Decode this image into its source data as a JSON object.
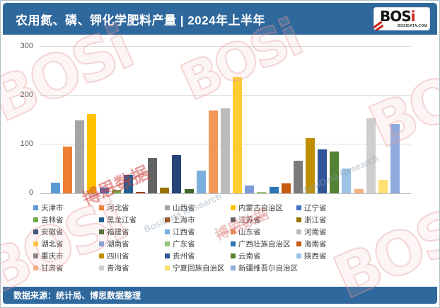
{
  "header": {
    "title": "农用氮、磷、钾化学肥料产量 | 2024年上半年",
    "logo": {
      "brand": "BOS",
      "brand_accent": "i",
      "domain": "BOSIDATA.COM"
    }
  },
  "footer": {
    "source_label": "数据来源：统计局、博思数据整理"
  },
  "watermarks": {
    "brand_en": "BOSi",
    "brand_cn": "博思数据",
    "research": "BosiData Research"
  },
  "chart_data": {
    "type": "bar",
    "title": "农用氮、磷、钾化学肥料产量 | 2024年上半年",
    "xlabel": "",
    "ylabel": "",
    "ylim": [
      0,
      300
    ],
    "yticks": [
      0,
      100,
      200,
      300
    ],
    "grid": true,
    "legend_position": "bottom",
    "legend_columns": 5,
    "categories": [
      "天津市",
      "河北省",
      "山西省",
      "内蒙古自治区",
      "辽宁省",
      "吉林省",
      "黑龙江省",
      "上海市",
      "江苏省",
      "浙江省",
      "安徽省",
      "福建省",
      "江西省",
      "山东省",
      "河南省",
      "湖北省",
      "湖南省",
      "广东省",
      "广西壮族自治区",
      "海南省",
      "重庆市",
      "四川省",
      "贵州省",
      "云南省",
      "陕西省",
      "甘肃省",
      "青海省",
      "宁夏回族自治区",
      "新疆维吾尔自治区"
    ],
    "values": [
      22,
      95,
      150,
      163,
      11,
      7,
      37,
      3,
      72,
      12,
      78,
      8,
      46,
      170,
      174,
      237,
      16,
      3,
      13,
      21,
      66,
      113,
      90,
      85,
      51,
      8,
      154,
      28,
      142
    ],
    "colors": [
      "#5B9BD5",
      "#ED7D31",
      "#A5A5A5",
      "#FFC000",
      "#4472C4",
      "#70AD47",
      "#255E91",
      "#9E480E",
      "#636363",
      "#997300",
      "#264478",
      "#43682B",
      "#7CAFDD",
      "#F1975A",
      "#BCBCBC",
      "#FFCD33",
      "#7D9BD6",
      "#93C572",
      "#2E75B6",
      "#C55A11",
      "#7B7B7B",
      "#BF8F00",
      "#2F5597",
      "#548235",
      "#9DC3E6",
      "#F4B183",
      "#CFCECE",
      "#FFE070",
      "#8FAADC"
    ],
    "accent_color": "#2F689D",
    "gridline_color": "#d9d9d9",
    "axis_color": "#bfbfbf"
  }
}
